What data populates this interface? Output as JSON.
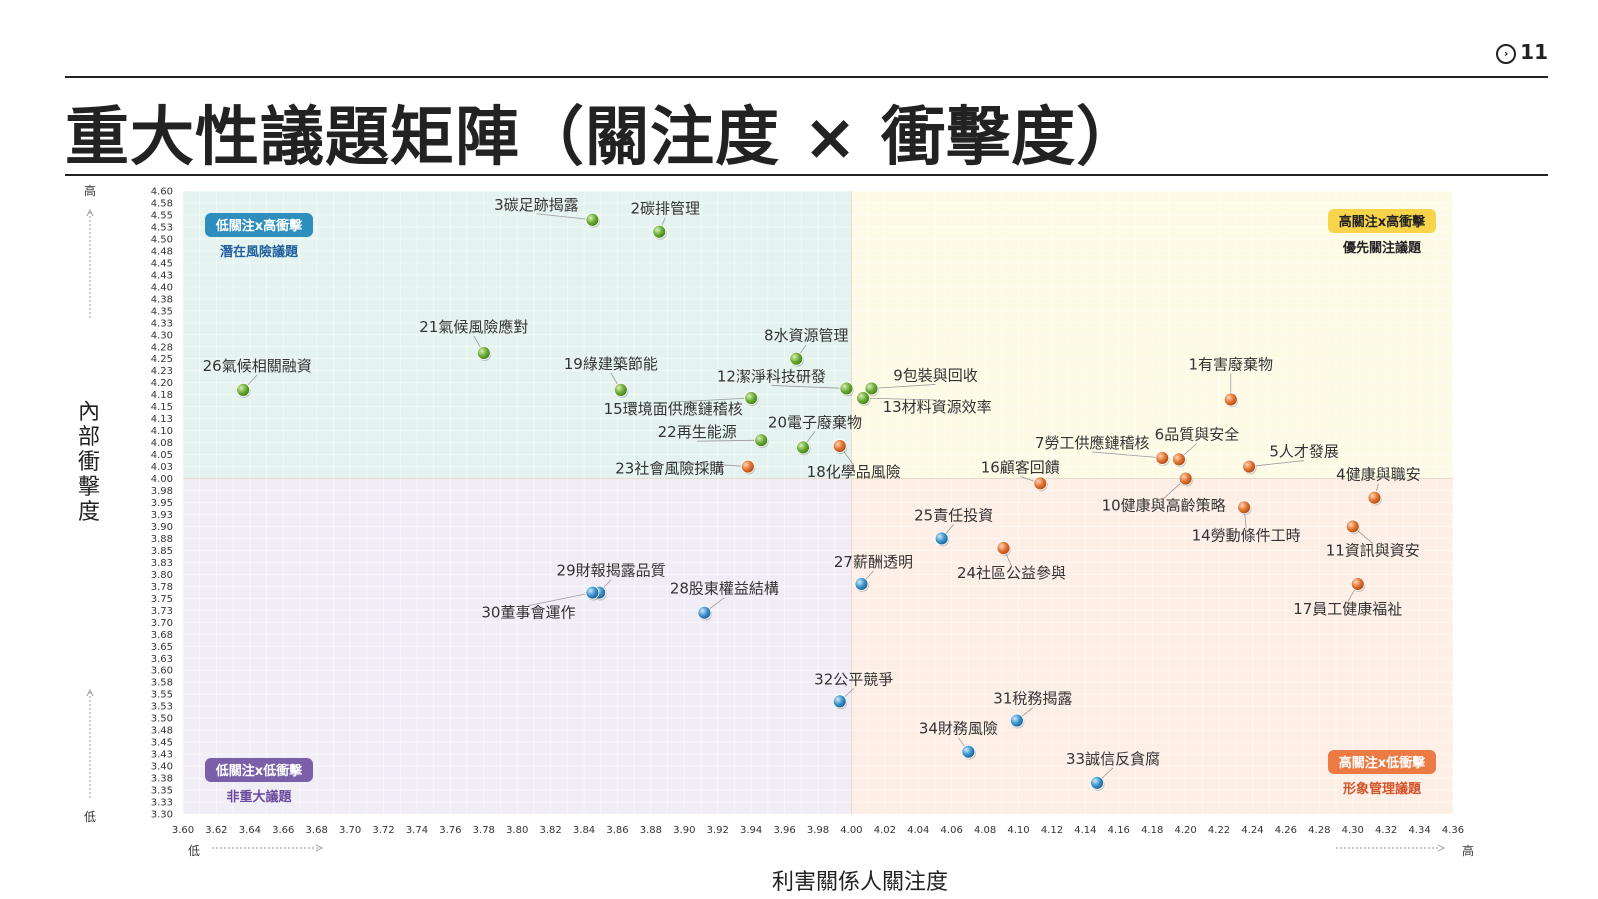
{
  "page": {
    "title": "重大性議題矩陣（關注度 × 衝擊度）",
    "page_number": "11"
  },
  "chart_data": {
    "type": "scatter",
    "xlabel": "利害關係人關注度",
    "ylabel": "內部衝擊度",
    "xlim": [
      3.6,
      4.36
    ],
    "ylim": [
      3.3,
      4.6
    ],
    "x_ticks": [
      "3.60",
      "3.62",
      "3.64",
      "3.66",
      "3.68",
      "3.70",
      "3.72",
      "3.74",
      "3.76",
      "3.78",
      "3.80",
      "3.82",
      "3.84",
      "3.86",
      "3.88",
      "3.90",
      "3.92",
      "3.94",
      "3.96",
      "3.98",
      "4.00",
      "4.02",
      "4.04",
      "4.06",
      "4.08",
      "4.10",
      "4.12",
      "4.14",
      "4.16",
      "4.18",
      "4.20",
      "4.22",
      "4.24",
      "4.26",
      "4.28",
      "4.30",
      "4.32",
      "4.34",
      "4.36"
    ],
    "y_ticks": [
      "4.60",
      "4.58",
      "4.55",
      "4.53",
      "4.50",
      "4.48",
      "4.45",
      "4.43",
      "4.40",
      "4.38",
      "4.35",
      "4.33",
      "4.30",
      "4.28",
      "4.25",
      "4.23",
      "4.20",
      "4.18",
      "4.15",
      "4.13",
      "4.10",
      "4.08",
      "4.05",
      "4.03",
      "4.00",
      "3.98",
      "3.95",
      "3.93",
      "3.90",
      "3.88",
      "3.85",
      "3.83",
      "3.80",
      "3.78",
      "3.75",
      "3.73",
      "3.70",
      "3.68",
      "3.65",
      "3.63",
      "3.60",
      "3.58",
      "3.55",
      "3.53",
      "3.50",
      "3.48",
      "3.45",
      "3.43",
      "3.40",
      "3.38",
      "3.35",
      "3.33",
      "3.30"
    ],
    "x_low_label": "低",
    "x_high_label": "高",
    "y_low_label": "低",
    "y_high_label": "高",
    "threshold": {
      "x": 4.0,
      "y": 4.0
    },
    "quadrants": [
      {
        "id": "tl",
        "badge": "低關注x高衝擊",
        "caption": "潛在風險議題",
        "badge_color": "#2e8fbf",
        "caption_color": "#1f5f9e",
        "bg": "#e4f3ef",
        "position": "top-left"
      },
      {
        "id": "tr",
        "badge": "高關注x高衝擊",
        "caption": "優先關注議題",
        "badge_color": "#f7d44a",
        "caption_color": "#222222",
        "bg": "#fdfbe6",
        "position": "top-right"
      },
      {
        "id": "bl",
        "badge": "低關注x低衝擊",
        "caption": "非重大議題",
        "badge_color": "#7b5fa8",
        "caption_color": "#6a4a9c",
        "bg": "#f1edf6",
        "position": "bottom-left"
      },
      {
        "id": "br",
        "badge": "高關注x低衝擊",
        "caption": "形象管理議題",
        "badge_color": "#ec7a43",
        "caption_color": "#d4542a",
        "bg": "#fdeee6",
        "position": "bottom-right"
      }
    ],
    "point_colors": {
      "green": "#6cab34",
      "orange": "#e0722f",
      "blue": "#3a92cc"
    },
    "points": [
      {
        "label": "1有害廢棄物",
        "x": 4.227,
        "y": 4.165,
        "color": "orange"
      },
      {
        "label": "2碳排管理",
        "x": 3.885,
        "y": 4.515,
        "color": "green"
      },
      {
        "label": "3碳足跡揭露",
        "x": 3.845,
        "y": 4.54,
        "color": "green"
      },
      {
        "label": "4健康與職安",
        "x": 4.313,
        "y": 3.96,
        "color": "orange"
      },
      {
        "label": "5人才發展",
        "x": 4.238,
        "y": 4.025,
        "color": "orange"
      },
      {
        "label": "6品質與安全",
        "x": 4.196,
        "y": 4.04,
        "color": "orange"
      },
      {
        "label": "7勞工供應鏈稽核",
        "x": 4.186,
        "y": 4.043,
        "color": "orange"
      },
      {
        "label": "8水資源管理",
        "x": 3.967,
        "y": 4.25,
        "color": "green"
      },
      {
        "label": "9包裝與回收",
        "x": 4.012,
        "y": 4.188,
        "color": "green"
      },
      {
        "label": "10健康與高齡策略",
        "x": 4.2,
        "y": 4.0,
        "color": "orange"
      },
      {
        "label": "11資訊與資安",
        "x": 4.3,
        "y": 3.9,
        "color": "orange"
      },
      {
        "label": "12潔淨科技研發",
        "x": 3.997,
        "y": 4.188,
        "color": "green"
      },
      {
        "label": "13材料資源效率",
        "x": 4.007,
        "y": 4.168,
        "color": "green"
      },
      {
        "label": "14勞動條件工時",
        "x": 4.235,
        "y": 3.94,
        "color": "orange"
      },
      {
        "label": "15環境面供應鏈稽核",
        "x": 3.94,
        "y": 4.168,
        "color": "green"
      },
      {
        "label": "16顧客回饋",
        "x": 4.113,
        "y": 3.99,
        "color": "orange"
      },
      {
        "label": "17員工健康福祉",
        "x": 4.303,
        "y": 3.78,
        "color": "orange"
      },
      {
        "label": "18化學品風險",
        "x": 3.993,
        "y": 4.068,
        "color": "orange"
      },
      {
        "label": "19綠建築節能",
        "x": 3.862,
        "y": 4.185,
        "color": "green"
      },
      {
        "label": "20電子廢棄物",
        "x": 3.971,
        "y": 4.065,
        "color": "green"
      },
      {
        "label": "21氣候風險應對",
        "x": 3.78,
        "y": 4.262,
        "color": "green"
      },
      {
        "label": "22再生能源",
        "x": 3.946,
        "y": 4.08,
        "color": "green"
      },
      {
        "label": "23社會風險採購",
        "x": 3.938,
        "y": 4.025,
        "color": "orange"
      },
      {
        "label": "24社區公益參與",
        "x": 4.091,
        "y": 3.855,
        "color": "orange"
      },
      {
        "label": "25責任投資",
        "x": 4.054,
        "y": 3.875,
        "color": "blue"
      },
      {
        "label": "26氣候相關融資",
        "x": 3.636,
        "y": 4.185,
        "color": "green"
      },
      {
        "label": "27薪酬透明",
        "x": 4.006,
        "y": 3.78,
        "color": "blue"
      },
      {
        "label": "28股東權益結構",
        "x": 3.912,
        "y": 3.72,
        "color": "blue"
      },
      {
        "label": "29財報揭露品質",
        "x": 3.849,
        "y": 3.762,
        "color": "blue"
      },
      {
        "label": "30董事會運作",
        "x": 3.845,
        "y": 3.762,
        "color": "blue"
      },
      {
        "label": "31稅務揭露",
        "x": 4.099,
        "y": 3.495,
        "color": "blue"
      },
      {
        "label": "32公平競爭",
        "x": 3.993,
        "y": 3.535,
        "color": "blue"
      },
      {
        "label": "33誠信反貪腐",
        "x": 4.147,
        "y": 3.365,
        "color": "blue"
      },
      {
        "label": "34財務風險",
        "x": 4.07,
        "y": 3.43,
        "color": "blue"
      }
    ]
  }
}
